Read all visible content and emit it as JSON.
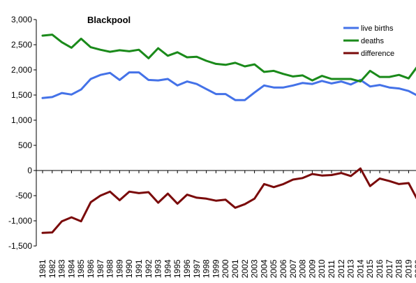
{
  "chart_data": {
    "type": "line",
    "title": "Blackpool",
    "xlabel": "",
    "ylabel": "",
    "x": [
      "1981",
      "1982",
      "1983",
      "1984",
      "1985",
      "1986",
      "1987",
      "1988",
      "1989",
      "1990",
      "1991",
      "1992",
      "1993",
      "1994",
      "1995",
      "1996",
      "1997",
      "1998",
      "1999",
      "2000",
      "2001",
      "2002",
      "2003",
      "2004",
      "2005",
      "2006",
      "2007",
      "2008",
      "2009",
      "2010",
      "2011",
      "2012",
      "2013",
      "2014",
      "2015",
      "2016",
      "2017",
      "2018",
      "2019",
      "2020"
    ],
    "ylim": [
      -1500,
      3000
    ],
    "yticks": [
      3000,
      2500,
      2000,
      1500,
      1000,
      500,
      0,
      -500,
      -1000,
      -1500
    ],
    "ytick_labels": [
      "3,000",
      "2,500",
      "2,000",
      "1,500",
      "1,000",
      "500",
      "0",
      "-500",
      "-1,000",
      "-1,500"
    ],
    "grid": false,
    "legend_position": "top-right",
    "series": [
      {
        "name": "live births",
        "color": "#4472e8",
        "values": [
          1440,
          1460,
          1540,
          1510,
          1610,
          1820,
          1900,
          1940,
          1800,
          1950,
          1950,
          1800,
          1790,
          1820,
          1690,
          1770,
          1720,
          1620,
          1520,
          1520,
          1400,
          1400,
          1550,
          1690,
          1650,
          1650,
          1690,
          1740,
          1720,
          1780,
          1730,
          1770,
          1710,
          1800,
          1670,
          1700,
          1650,
          1630,
          1580,
          1480
        ]
      },
      {
        "name": "deaths",
        "color": "#1a8a1a",
        "values": [
          2680,
          2700,
          2550,
          2440,
          2620,
          2450,
          2400,
          2360,
          2390,
          2370,
          2400,
          2230,
          2430,
          2280,
          2350,
          2250,
          2260,
          2180,
          2120,
          2100,
          2140,
          2070,
          2110,
          1960,
          1980,
          1920,
          1870,
          1890,
          1790,
          1880,
          1820,
          1820,
          1820,
          1770,
          1980,
          1860,
          1860,
          1900,
          1830,
          2090
        ]
      },
      {
        "name": "difference",
        "color": "#7a0a0a",
        "values": [
          -1240,
          -1230,
          -1010,
          -930,
          -1010,
          -630,
          -500,
          -420,
          -590,
          -420,
          -450,
          -430,
          -640,
          -460,
          -660,
          -480,
          -540,
          -560,
          -600,
          -580,
          -740,
          -670,
          -560,
          -270,
          -330,
          -270,
          -180,
          -150,
          -70,
          -100,
          -90,
          -50,
          -110,
          40,
          -310,
          -160,
          -210,
          -270,
          -250,
          -610
        ]
      }
    ]
  }
}
